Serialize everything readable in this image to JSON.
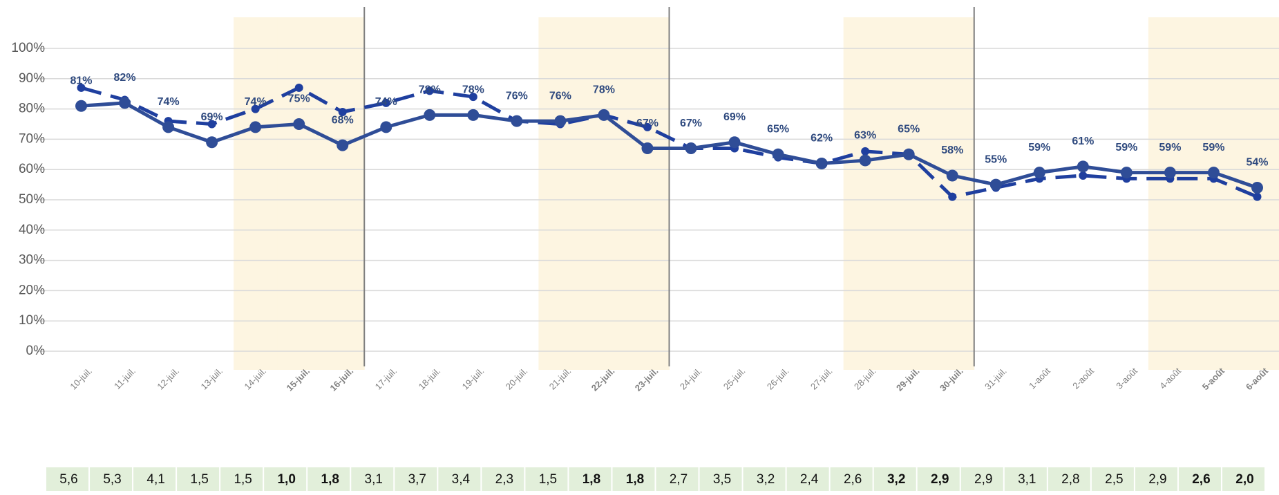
{
  "chart_data": {
    "type": "line",
    "categories": [
      "10-juil.",
      "11-juil.",
      "12-juil.",
      "13-juil.",
      "14-juil.",
      "15-juil.",
      "16-juil.",
      "17-juil.",
      "18-juil.",
      "19-juil.",
      "20-juil.",
      "21-juil.",
      "22-juil.",
      "23-juil.",
      "24-juil.",
      "25-juil.",
      "26-juil.",
      "27-juil.",
      "28-juil.",
      "29-juil.",
      "30-juil.",
      "31-juil.",
      "1-août",
      "2-août",
      "3-août",
      "4-août",
      "5-août",
      "6-août"
    ],
    "series": [
      {
        "color": "#2f4d97",
        "style": "solid",
        "values": [
          81,
          82,
          74,
          69,
          74,
          75,
          68,
          74,
          78,
          78,
          76,
          76,
          78,
          67,
          67,
          69,
          65,
          62,
          63,
          65,
          58,
          55,
          59,
          61,
          59,
          59,
          59,
          54
        ],
        "value_labels": [
          "81%",
          "82%",
          "74%",
          "69%",
          "74%",
          "75%",
          "68%",
          "74%",
          "78%",
          "78%",
          "76%",
          "76%",
          "78%",
          "67%",
          "67%",
          "69%",
          "65%",
          "62%",
          "63%",
          "65%",
          "58%",
          "55%",
          "59%",
          "61%",
          "59%",
          "59%",
          "59%",
          "54%"
        ]
      },
      {
        "color": "#1f3f9f",
        "style": "dashed",
        "values": [
          87,
          83,
          76,
          75,
          80,
          87,
          79,
          82,
          86,
          84,
          76,
          75,
          78,
          74,
          67,
          67,
          64,
          62,
          66,
          65,
          51,
          54,
          57,
          58,
          57,
          57,
          57,
          51
        ]
      }
    ],
    "ylim": [
      0,
      100
    ],
    "yticks": [
      {
        "value": 0,
        "label": "0%"
      },
      {
        "value": 10,
        "label": "10%"
      },
      {
        "value": 20,
        "label": "20%"
      },
      {
        "value": 30,
        "label": "30%"
      },
      {
        "value": 40,
        "label": "40%"
      },
      {
        "value": 50,
        "label": "50%"
      },
      {
        "value": 60,
        "label": "60%"
      },
      {
        "value": 70,
        "label": "70%"
      },
      {
        "value": 80,
        "label": "80%"
      },
      {
        "value": 90,
        "label": "90%"
      },
      {
        "value": 100,
        "label": "100%"
      }
    ],
    "grid": true,
    "shaded_categories": [
      4,
      5,
      6,
      11,
      12,
      13,
      18,
      19,
      20,
      25,
      26,
      27
    ],
    "bold_categories": [
      5,
      6,
      12,
      13,
      19,
      20,
      26,
      27
    ],
    "separators_after": [
      6,
      13,
      20
    ],
    "bottom_row": [
      "5,6",
      "5,3",
      "4,1",
      "1,5",
      "1,5",
      "1,0",
      "1,8",
      "3,1",
      "3,7",
      "3,4",
      "2,3",
      "1,5",
      "1,8",
      "1,8",
      "2,7",
      "3,5",
      "3,2",
      "2,4",
      "2,6",
      "3,2",
      "2,9",
      "2,9",
      "3,1",
      "2,8",
      "2,5",
      "2,9",
      "2,6",
      "2,0"
    ]
  }
}
